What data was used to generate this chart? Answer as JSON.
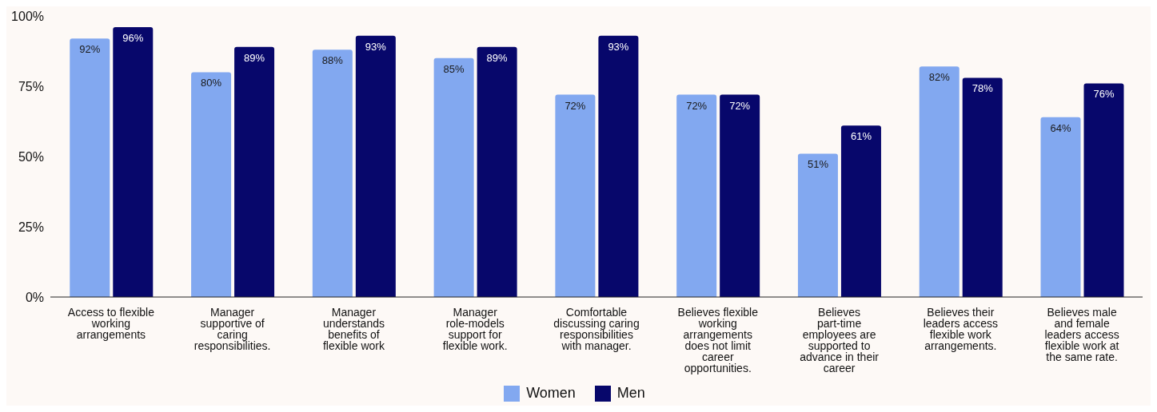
{
  "chart_data": {
    "type": "bar",
    "categories": [
      "Access to flexible working arrangements",
      "Manager supportive of caring responsibilities.",
      "Manager understands benefits of flexible work",
      "Manager role-models support for flexible work.",
      "Comfortable discussing caring responsibilities with manager.",
      "Believes flexible working arrangements does not limit career opportunities.",
      "Believes part-time employees are supported to advance in their career",
      "Believes their leaders access flexible work arrangements.",
      "Believes male and female leaders access flexible work at the same rate."
    ],
    "series": [
      {
        "name": "Women",
        "color": "#82a8f0",
        "values": [
          92,
          80,
          88,
          85,
          72,
          72,
          51,
          82,
          64
        ],
        "value_labels": [
          "92%",
          "80%",
          "88%",
          "85%",
          "72%",
          "72%",
          "51%",
          "82%",
          "64%"
        ]
      },
      {
        "name": "Men",
        "color": "#07076b",
        "values": [
          96,
          89,
          93,
          89,
          93,
          72,
          61,
          78,
          76
        ],
        "value_labels": [
          "96%",
          "89%",
          "93%",
          "89%",
          "93%",
          "72%",
          "61%",
          "78%",
          "76%"
        ]
      }
    ],
    "ylim": [
      0,
      100
    ],
    "yticks": [
      {
        "value": 0,
        "label": "0%"
      },
      {
        "value": 25,
        "label": "25%"
      },
      {
        "value": 50,
        "label": "50%"
      },
      {
        "value": 75,
        "label": "75%"
      },
      {
        "value": 100,
        "label": "100%"
      }
    ],
    "grid": false,
    "legend": "bottom"
  }
}
